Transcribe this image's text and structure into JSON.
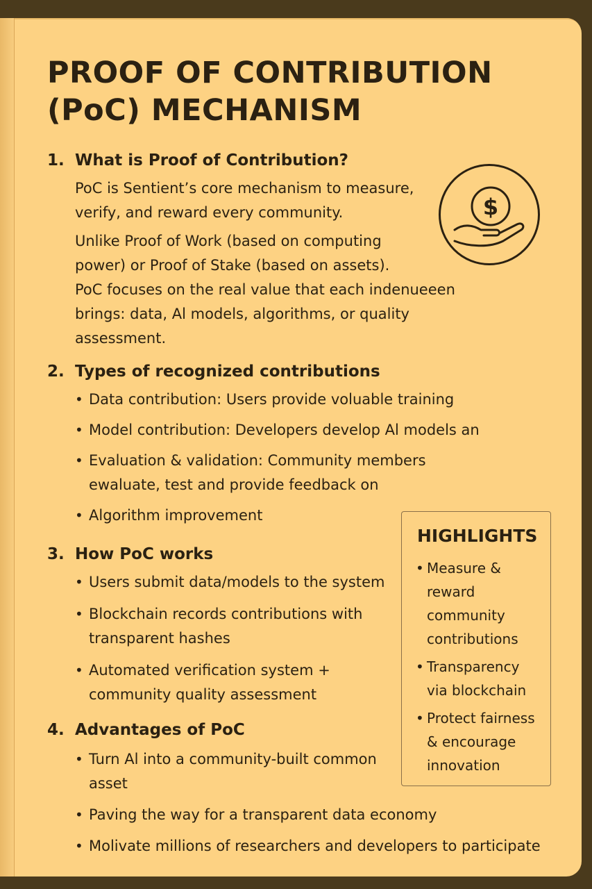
{
  "title_lines": [
    "PROOF OF CONTRIBUTION",
    "(PoC) MECHANISM"
  ],
  "sections": [
    {
      "number": "1.",
      "heading": "What is Proof of Contribution?",
      "paragraphs": [
        [
          "PoC is Sentient’s core mechanism to measure,",
          "verify, and reward every community."
        ],
        [
          "Unlike Proof of Work (based on computing",
          "power) or Proof of Stake (based on assets).",
          "PoC focuses on the real value that each indenueeen",
          "brings: data, Al models, algorithms, or quality",
          "assessment."
        ]
      ]
    },
    {
      "number": "2.",
      "heading": "Types of recognized contributions",
      "bullets": [
        [
          "Data contribution: Users provide voluable training"
        ],
        [
          "Model contribution: Developers develop Al models an"
        ],
        [
          "Evaluation & validation: Community members",
          "ewaluate, test and provide feedback on"
        ],
        [
          "Algorithm improvement"
        ]
      ]
    },
    {
      "number": "3.",
      "heading": "How PoC works",
      "bullets": [
        [
          "Users submit data/models to the system"
        ],
        [
          "Blockchain records contributions with",
          "transparent hashes"
        ],
        [
          "Automated verification system +",
          "community quality assessment"
        ]
      ]
    },
    {
      "number": "4.",
      "heading": "Advantages of PoC",
      "bullets": [
        [
          "Turn Al into a community-built common",
          "asset"
        ],
        [
          "Paving the way for a transparent data economy"
        ],
        [
          "Molivate millions of researchers and developers to participate"
        ]
      ]
    }
  ],
  "icon": {
    "name": "coin-hand-icon",
    "symbol": "$"
  },
  "highlights": {
    "title": "HIGHLIGHTS",
    "items": [
      [
        "Measure &",
        "reward",
        "community",
        "contributions"
      ],
      [
        "Transparency",
        "via blockchain"
      ],
      [
        "Protect fairness",
        "& encourage",
        "innovation"
      ]
    ]
  }
}
